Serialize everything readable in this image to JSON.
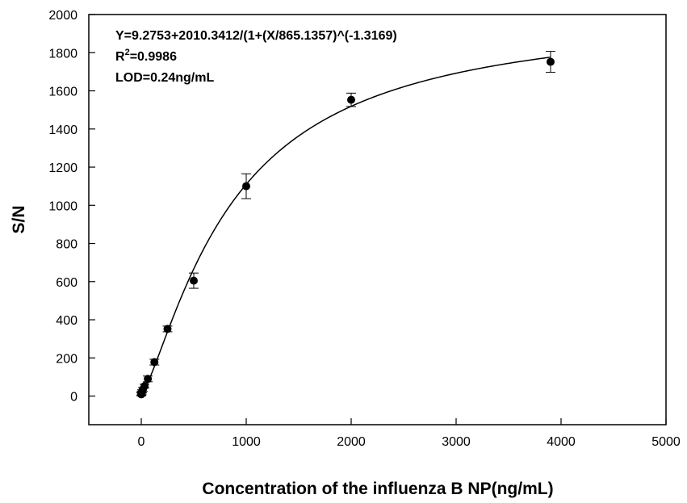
{
  "chart_data": {
    "type": "scatter",
    "title": "",
    "xlabel": "Concentration of the influenza B NP(ng/mL)",
    "ylabel": "S/N",
    "xlim": [
      -500,
      5000
    ],
    "ylim": [
      -150,
      2000
    ],
    "xticks": [
      0,
      1000,
      2000,
      3000,
      4000,
      5000
    ],
    "yticks": [
      0,
      200,
      400,
      600,
      800,
      1000,
      1200,
      1400,
      1600,
      1800,
      2000
    ],
    "grid": false,
    "annotations": {
      "equation": "Y=9.2753+2010.3412/(1+(X/865.1357)^(-1.3169)",
      "r2_prefix": "R",
      "r2_sup": "2",
      "r2_value": "=0.9986",
      "lod": "LOD=0.24ng/mL"
    },
    "fit": {
      "model": "logistic",
      "A": 9.2753,
      "B": 2010.3412,
      "C": 865.1357,
      "D": -1.3169,
      "x_range": [
        0,
        3900
      ]
    },
    "series": [
      {
        "points": [
          {
            "x": 0.24,
            "y": 9,
            "err": 8
          },
          {
            "x": 0.98,
            "y": 12,
            "err": 8
          },
          {
            "x": 3.9,
            "y": 18,
            "err": 8
          },
          {
            "x": 7.8,
            "y": 25,
            "err": 8
          },
          {
            "x": 15.6,
            "y": 35,
            "err": 10
          },
          {
            "x": 31.2,
            "y": 52,
            "err": 10
          },
          {
            "x": 62.5,
            "y": 90,
            "err": 15
          },
          {
            "x": 125,
            "y": 178,
            "err": 15
          },
          {
            "x": 250,
            "y": 352,
            "err": 15
          },
          {
            "x": 500,
            "y": 605,
            "err": 40
          },
          {
            "x": 1000,
            "y": 1100,
            "err": 65
          },
          {
            "x": 2000,
            "y": 1553,
            "err": 35
          },
          {
            "x": 3900,
            "y": 1752,
            "err": 55
          }
        ]
      }
    ]
  }
}
